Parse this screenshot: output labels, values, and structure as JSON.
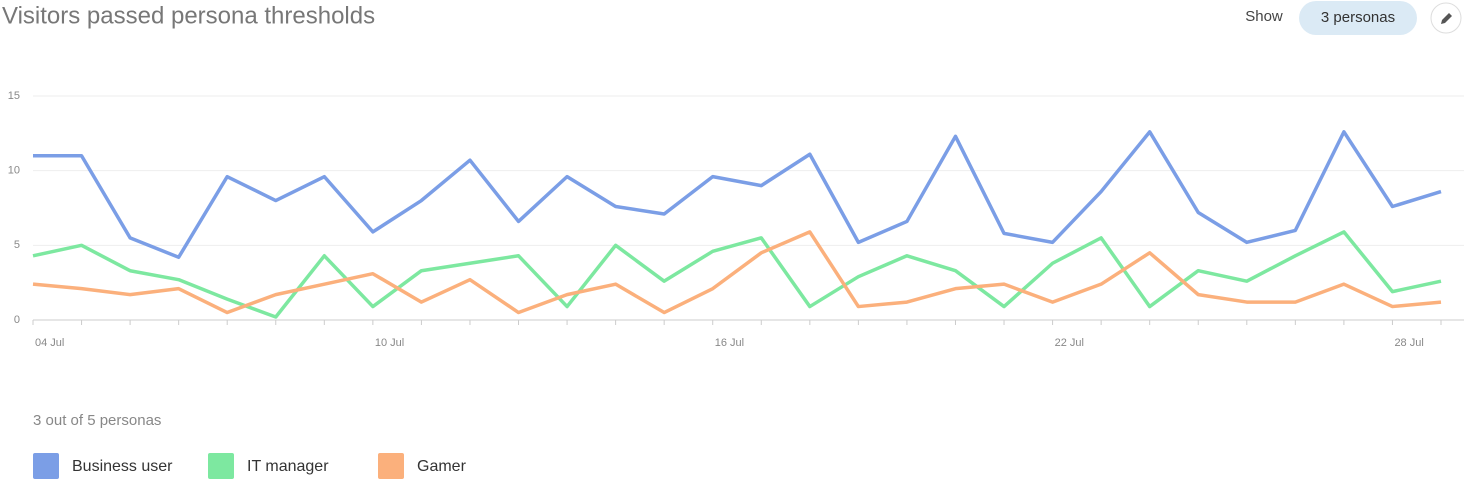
{
  "header": {
    "title": "Visitors passed persona thresholds",
    "show_label": "Show",
    "button": "3 personas"
  },
  "chart_data": {
    "type": "line",
    "categories": [
      "04 Jul",
      null,
      null,
      null,
      null,
      null,
      null,
      "10 Jul",
      null,
      null,
      null,
      null,
      null,
      null,
      "16 Jul",
      null,
      null,
      null,
      null,
      null,
      null,
      "22 Jul",
      null,
      null,
      null,
      null,
      null,
      null,
      "28 Jul",
      null
    ],
    "series": [
      {
        "name": "Business user",
        "color": "#7b9ee6",
        "values": [
          11,
          11,
          5.5,
          4.2,
          9.6,
          8,
          9.6,
          5.9,
          8,
          10.7,
          6.6,
          9.6,
          7.6,
          7.1,
          9.6,
          9,
          11.1,
          5.2,
          6.6,
          12.3,
          5.8,
          5.2,
          8.6,
          12.6,
          7.2,
          5.2,
          6,
          12.6,
          7.6,
          8.6
        ]
      },
      {
        "name": "IT manager",
        "color": "#7de8a0",
        "values": [
          4.3,
          5,
          3.3,
          2.7,
          1.4,
          0.2,
          4.3,
          0.9,
          3.3,
          3.8,
          4.3,
          0.9,
          5,
          2.6,
          4.6,
          5.5,
          0.9,
          2.9,
          4.3,
          3.3,
          0.9,
          3.8,
          5.5,
          0.9,
          3.3,
          2.6,
          4.3,
          5.9,
          1.9,
          2.6
        ]
      },
      {
        "name": "Gamer",
        "color": "#fbb07c",
        "values": [
          2.4,
          2.1,
          1.7,
          2.1,
          0.5,
          1.7,
          2.4,
          3.1,
          1.2,
          2.7,
          0.5,
          1.7,
          2.4,
          0.5,
          2.1,
          4.5,
          5.9,
          0.9,
          1.2,
          2.1,
          2.4,
          1.2,
          2.4,
          4.5,
          1.7,
          1.2,
          1.2,
          2.4,
          0.9,
          1.2
        ]
      }
    ],
    "ylim": [
      0,
      15
    ],
    "yticks": [
      0,
      5,
      10,
      15
    ],
    "grid": true,
    "legend_caption": "3 out of 5 personas"
  }
}
